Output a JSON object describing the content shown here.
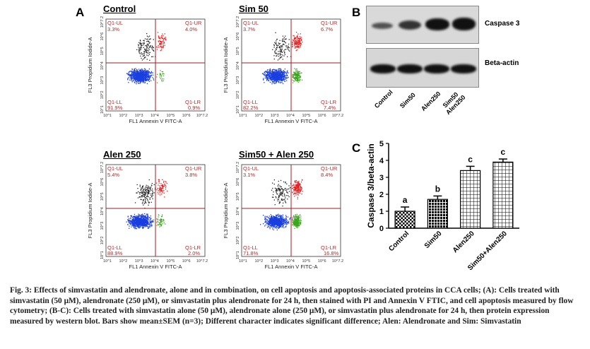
{
  "panel_a_label": "A",
  "panel_b_label": "B",
  "panel_c_label": "C",
  "flow_panels": [
    {
      "title": "Control",
      "ul": "Q1-UL",
      "ul_val": "3.3%",
      "ur": "Q1-UR",
      "ur_val": "4.0%",
      "ll": "Q1-LL",
      "ll_val": "91.9%",
      "lr": "Q1-LR",
      "lr_val": "0.9%"
    },
    {
      "title": "Sim 50",
      "ul": "Q1-UL",
      "ul_val": "3.7%",
      "ur": "Q1-UR",
      "ur_val": "6.7%",
      "ll": "Q1-LL",
      "ll_val": "82.2%",
      "lr": "Q1-LR",
      "lr_val": "7.4%"
    },
    {
      "title": "Alen 250",
      "ul": "Q1-UL",
      "ul_val": "5.4%",
      "ur": "Q1-UR",
      "ur_val": "3.8%",
      "ll": "Q1-LL",
      "ll_val": "88.9%",
      "lr": "Q1-LR",
      "lr_val": "2.0%"
    },
    {
      "title": "Sim50 + Alen 250",
      "ul": "Q1-UL",
      "ul_val": "3.1%",
      "ur": "Q1-UR",
      "ur_val": "8.4%",
      "ll": "Q1-LL",
      "ll_val": "71.8%",
      "lr": "Q1-LR",
      "lr_val": "16.8%"
    }
  ],
  "flow_axes": {
    "x_label": "FL1 Annexin V FITC-A",
    "y_label": "FL3 Propidium Iodide-A",
    "x_ticks": [
      "10^1",
      "10^2",
      "10^3",
      "10^4",
      "10^5",
      "10^6",
      "10^7.2"
    ],
    "y_ticks": [
      "10^1",
      "10^2",
      "10^3",
      "10^4",
      "10^5",
      "10^6",
      "10^7.2"
    ]
  },
  "blot": {
    "band_labels": [
      "Caspase 3",
      "Beta-actin"
    ],
    "lanes": [
      "Control",
      "Sim50",
      "Alen250",
      "Sim50 Alen250"
    ]
  },
  "chart_data": {
    "type": "bar",
    "categories": [
      "Control",
      "Sim50",
      "Alen250",
      "Sim50+Alen250"
    ],
    "values": [
      1.0,
      1.7,
      3.4,
      3.9
    ],
    "errors": [
      0.25,
      0.2,
      0.25,
      0.18
    ],
    "letters": [
      "a",
      "b",
      "c",
      "c"
    ],
    "ylabel": "Caspase 3/beta-actin",
    "ylim": [
      0,
      5
    ],
    "yticks": [
      "0",
      "1",
      "2",
      "3",
      "4",
      "5"
    ]
  },
  "caption": "Fig. 3: Effects of simvastatin and alendronate, alone and in combination, on cell apoptosis and apoptosis-associated proteins in CCA cells; (A): Cells treated with simvastatin (50 μM), alendronate (250 μM), or simvastatin plus alendronate for 24 h, then stained with PI and Annexin V FTIC, and cell apoptosis measured by flow cytometry; (B-C): Cells treated with simvastatin alone (50 μM), alendronate alone (250 μM), or simvastatin plus alendronate for 24 h, then protein expression measured by western blot. Bars show mean±SEM (n=3); Different character indicates significant difference; Alen: Alendronate and Sim: Simvastatin"
}
